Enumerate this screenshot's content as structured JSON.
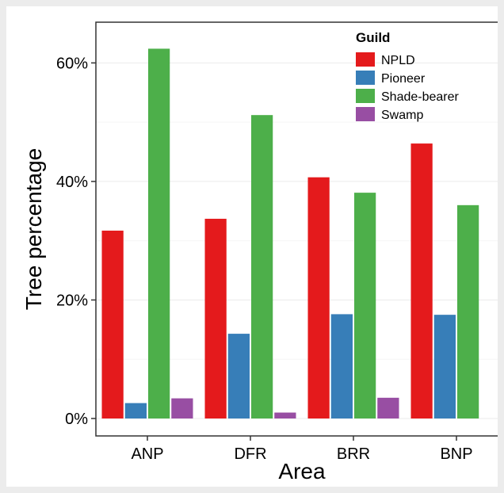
{
  "chart_data": {
    "type": "bar",
    "xlabel": "Area",
    "ylabel": "Tree percentage",
    "categories": [
      "ANP",
      "DFR",
      "BRR",
      "BNP"
    ],
    "ylim": [
      0,
      0.65
    ],
    "yticks": [
      0,
      0.2,
      0.4,
      0.6
    ],
    "ytick_labels": [
      "0%",
      "20%",
      "40%",
      "60%"
    ],
    "grid": true,
    "legend": {
      "title": "Guild",
      "placement": "top-right"
    },
    "series": [
      {
        "name": "NPLD",
        "color": "#e41a1c",
        "values": [
          0.317,
          0.337,
          0.407,
          0.464
        ]
      },
      {
        "name": "Pioneer",
        "color": "#377eb8",
        "values": [
          0.026,
          0.143,
          0.176,
          0.175
        ]
      },
      {
        "name": "Shade-bearer",
        "color": "#4daf4a",
        "values": [
          0.624,
          0.512,
          0.381,
          0.36
        ]
      },
      {
        "name": "Swamp",
        "color": "#984ea3",
        "values": [
          0.034,
          0.01,
          0.035,
          0.0
        ]
      }
    ]
  }
}
